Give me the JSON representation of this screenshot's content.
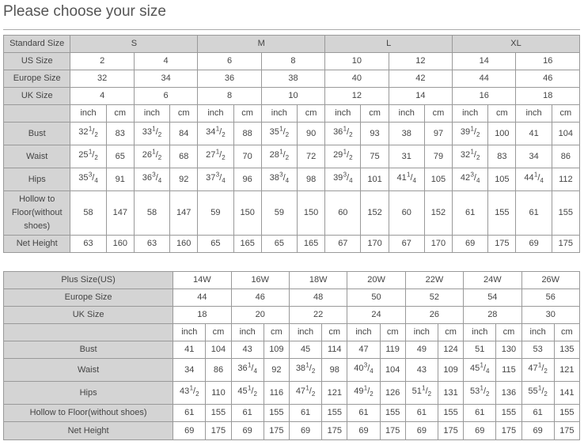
{
  "title": "Please choose your size",
  "colors": {
    "header_bg": "#d4d4d4",
    "border": "#999999",
    "text": "#444444"
  },
  "standard_table": {
    "header_label": "Standard Size",
    "groups": [
      {
        "label": "S",
        "span": 2
      },
      {
        "label": "M",
        "span": 2
      },
      {
        "label": "L",
        "span": 2
      },
      {
        "label": "XL",
        "span": 2
      }
    ],
    "size_rows": [
      {
        "label": "US Size",
        "values": [
          "2",
          "4",
          "6",
          "8",
          "10",
          "12",
          "14",
          "16"
        ]
      },
      {
        "label": "Europe Size",
        "values": [
          "32",
          "34",
          "36",
          "38",
          "40",
          "42",
          "44",
          "46"
        ]
      },
      {
        "label": "UK Size",
        "values": [
          "4",
          "6",
          "8",
          "10",
          "12",
          "14",
          "16",
          "18"
        ]
      }
    ],
    "unit_labels": [
      "inch",
      "cm"
    ],
    "measure_rows": [
      {
        "label": "Bust",
        "values": [
          "32 1/2",
          "83",
          "33 1/2",
          "84",
          "34 1/2",
          "88",
          "35 1/2",
          "90",
          "36 1/2",
          "93",
          "38",
          "97",
          "39 1/2",
          "100",
          "41",
          "104"
        ]
      },
      {
        "label": "Waist",
        "values": [
          "25 1/2",
          "65",
          "26 1/2",
          "68",
          "27 1/2",
          "70",
          "28 1/2",
          "72",
          "29 1/2",
          "75",
          "31",
          "79",
          "32 1/2",
          "83",
          "34",
          "86"
        ]
      },
      {
        "label": "Hips",
        "values": [
          "35 3/4",
          "91",
          "36 3/4",
          "92",
          "37 3/4",
          "96",
          "38 3/4",
          "98",
          "39 3/4",
          "101",
          "41 1/4",
          "105",
          "42 3/4",
          "105",
          "44 1/4",
          "112"
        ]
      },
      {
        "label": "Hollow to Floor(without shoes)",
        "values": [
          "58",
          "147",
          "58",
          "147",
          "59",
          "150",
          "59",
          "150",
          "60",
          "152",
          "60",
          "152",
          "61",
          "155",
          "61",
          "155"
        ]
      },
      {
        "label": "Net Height",
        "values": [
          "63",
          "160",
          "63",
          "160",
          "65",
          "165",
          "65",
          "165",
          "67",
          "170",
          "67",
          "170",
          "69",
          "175",
          "69",
          "175"
        ]
      }
    ]
  },
  "plus_table": {
    "size_rows": [
      {
        "label": "Plus Size(US)",
        "values": [
          "14W",
          "16W",
          "18W",
          "20W",
          "22W",
          "24W",
          "26W"
        ]
      },
      {
        "label": "Europe Size",
        "values": [
          "44",
          "46",
          "48",
          "50",
          "52",
          "54",
          "56"
        ]
      },
      {
        "label": "UK Size",
        "values": [
          "18",
          "20",
          "22",
          "24",
          "26",
          "28",
          "30"
        ]
      }
    ],
    "unit_labels": [
      "inch",
      "cm"
    ],
    "measure_rows": [
      {
        "label": "Bust",
        "values": [
          "41",
          "104",
          "43",
          "109",
          "45",
          "114",
          "47",
          "119",
          "49",
          "124",
          "51",
          "130",
          "53",
          "135"
        ]
      },
      {
        "label": "Waist",
        "values": [
          "34",
          "86",
          "36 1/4",
          "92",
          "38 1/2",
          "98",
          "40 3/4",
          "104",
          "43",
          "109",
          "45 1/4",
          "115",
          "47 1/2",
          "121"
        ]
      },
      {
        "label": "Hips",
        "values": [
          "43 1/2",
          "110",
          "45 1/2",
          "116",
          "47 1/2",
          "121",
          "49 1/2",
          "126",
          "51 1/2",
          "131",
          "53 1/2",
          "136",
          "55 1/2",
          "141"
        ]
      },
      {
        "label": "Hollow to Floor(without shoes)",
        "values": [
          "61",
          "155",
          "61",
          "155",
          "61",
          "155",
          "61",
          "155",
          "61",
          "155",
          "61",
          "155",
          "61",
          "155"
        ]
      },
      {
        "label": "Net Height",
        "values": [
          "69",
          "175",
          "69",
          "175",
          "69",
          "175",
          "69",
          "175",
          "69",
          "175",
          "69",
          "175",
          "69",
          "175"
        ]
      }
    ]
  }
}
